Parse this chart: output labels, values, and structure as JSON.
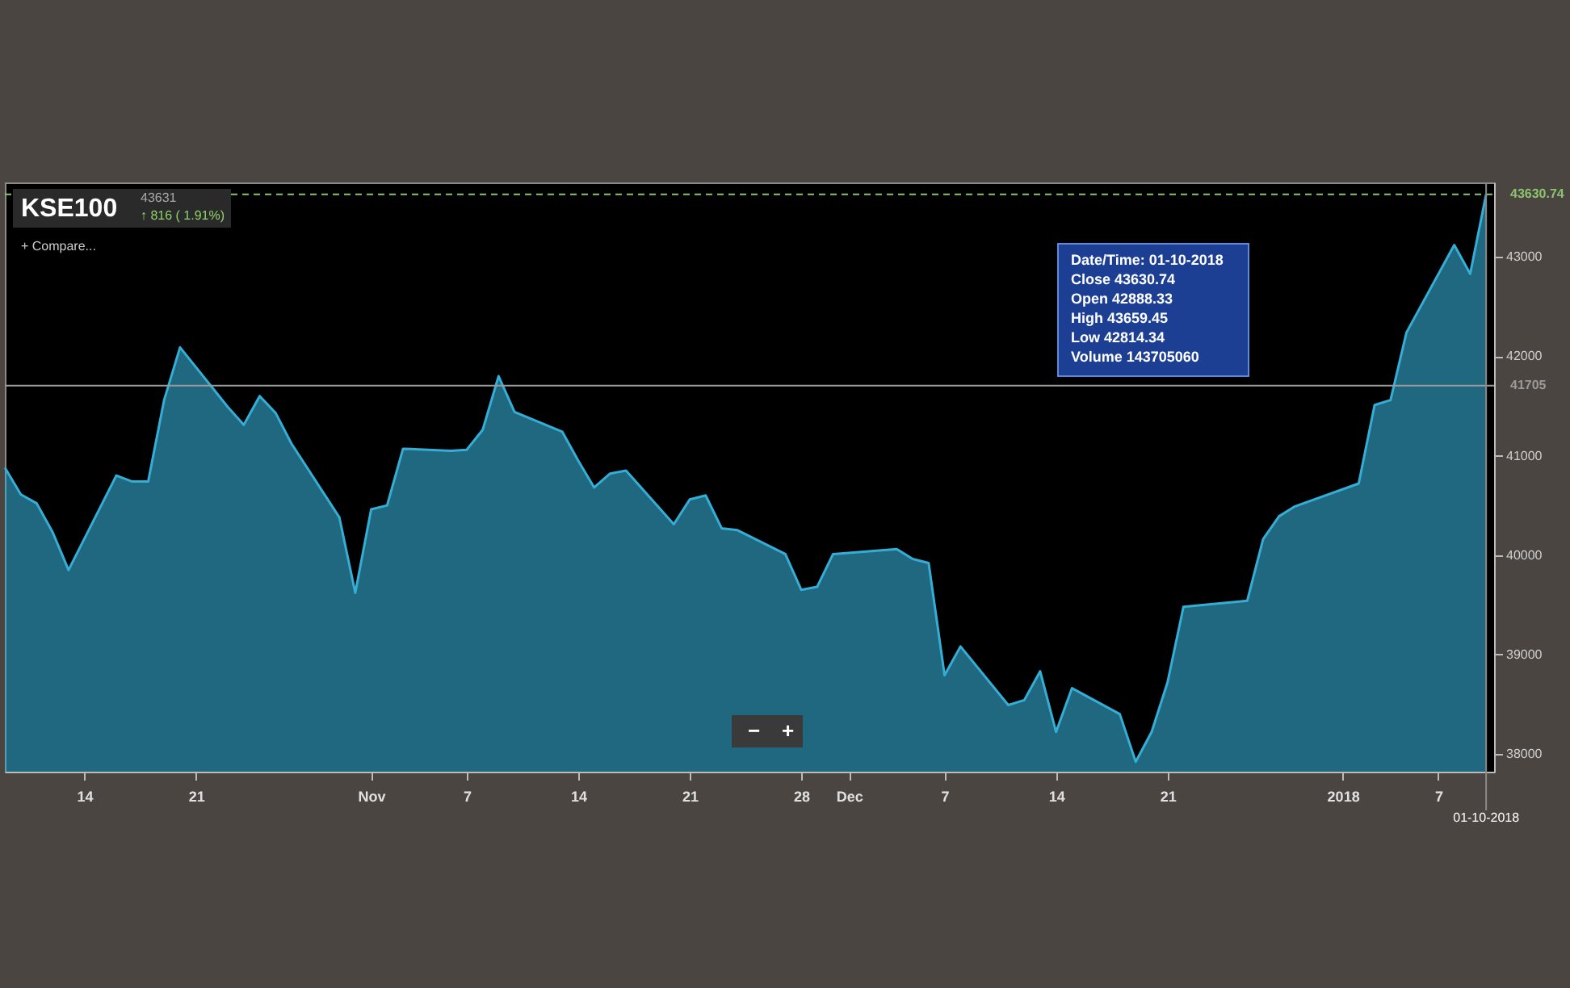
{
  "chart_data": {
    "type": "area",
    "title": "KSE100",
    "x": [
      "2017-10-09",
      "2017-10-10",
      "2017-10-11",
      "2017-10-12",
      "2017-10-13",
      "2017-10-16",
      "2017-10-17",
      "2017-10-18",
      "2017-10-19",
      "2017-10-20",
      "2017-10-23",
      "2017-10-24",
      "2017-10-25",
      "2017-10-26",
      "2017-10-27",
      "2017-10-30",
      "2017-10-31",
      "2017-11-01",
      "2017-11-02",
      "2017-11-03",
      "2017-11-06",
      "2017-11-07",
      "2017-11-08",
      "2017-11-09",
      "2017-11-10",
      "2017-11-13",
      "2017-11-14",
      "2017-11-15",
      "2017-11-16",
      "2017-11-17",
      "2017-11-20",
      "2017-11-21",
      "2017-11-22",
      "2017-11-23",
      "2017-11-24",
      "2017-11-27",
      "2017-11-28",
      "2017-11-29",
      "2017-11-30",
      "2017-12-04",
      "2017-12-05",
      "2017-12-06",
      "2017-12-07",
      "2017-12-08",
      "2017-12-11",
      "2017-12-12",
      "2017-12-13",
      "2017-12-14",
      "2017-12-15",
      "2017-12-18",
      "2017-12-19",
      "2017-12-20",
      "2017-12-21",
      "2017-12-22",
      "2017-12-26",
      "2017-12-27",
      "2017-12-28",
      "2017-12-29",
      "2018-01-02",
      "2018-01-03",
      "2018-01-04",
      "2018-01-05",
      "2018-01-08",
      "2018-01-09",
      "2018-01-10"
    ],
    "series": [
      {
        "color": "#35aed6",
        "values": [
          40880,
          40610,
          40520,
          40230,
          39850,
          40800,
          40740,
          40740,
          41560,
          42090,
          41490,
          41310,
          41600,
          41430,
          41120,
          40380,
          39620,
          40460,
          40500,
          41070,
          41050,
          41060,
          41260,
          41800,
          41440,
          41240,
          40950,
          40680,
          40820,
          40850,
          40310,
          40560,
          40600,
          40270,
          40250,
          40010,
          39650,
          39680,
          40010,
          40060,
          39960,
          39920,
          38790,
          39080,
          38490,
          38540,
          38830,
          38220,
          38660,
          38400,
          37920,
          38220,
          38720,
          39480,
          39540,
          40160,
          40390,
          40490,
          40720,
          41510,
          41560,
          42240,
          43120,
          42830,
          43630.74
        ]
      }
    ],
    "xlim": [
      "2017-10-09",
      "2018-01-10T12:00"
    ],
    "xticks": [
      {
        "value": "2017-10-14",
        "label": "14"
      },
      {
        "value": "2017-10-21",
        "label": "21"
      },
      {
        "value": "2017-11-01",
        "label": "Nov"
      },
      {
        "value": "2017-11-07",
        "label": "7"
      },
      {
        "value": "2017-11-14",
        "label": "14"
      },
      {
        "value": "2017-11-21",
        "label": "21"
      },
      {
        "value": "2017-11-28",
        "label": "28"
      },
      {
        "value": "2017-12-01",
        "label": "Dec"
      },
      {
        "value": "2017-12-07",
        "label": "7"
      },
      {
        "value": "2017-12-14",
        "label": "14"
      },
      {
        "value": "2017-12-21",
        "label": "21"
      },
      {
        "value": "2018-01-01",
        "label": "2018"
      },
      {
        "value": "2018-01-07",
        "label": "7"
      }
    ],
    "ylim": [
      37820,
      43750
    ],
    "yticks": [
      38000,
      39000,
      40000,
      41000,
      42000,
      43000
    ],
    "ref_lines": [
      {
        "axis": "y",
        "value": 41705,
        "label": "41705",
        "color": "#9a9a9a"
      },
      {
        "axis": "y",
        "value": 43630.74,
        "label": "43630.74",
        "color": "#8dc26f",
        "line_style": "dashed"
      },
      {
        "axis": "x",
        "value": "2018-01-10",
        "label": "01-10-2018",
        "color": "#8a8a8a"
      }
    ],
    "annotations": [
      "43631",
      "↑ 816 ( 1.91%)",
      "+ Compare...",
      "Date/Time: 01-10-2018",
      "Close 43630.74",
      "Open 42888.33",
      "High 43659.45",
      "Low 42814.34",
      "Volume 143705060",
      "−",
      "+"
    ],
    "grid": false
  }
}
